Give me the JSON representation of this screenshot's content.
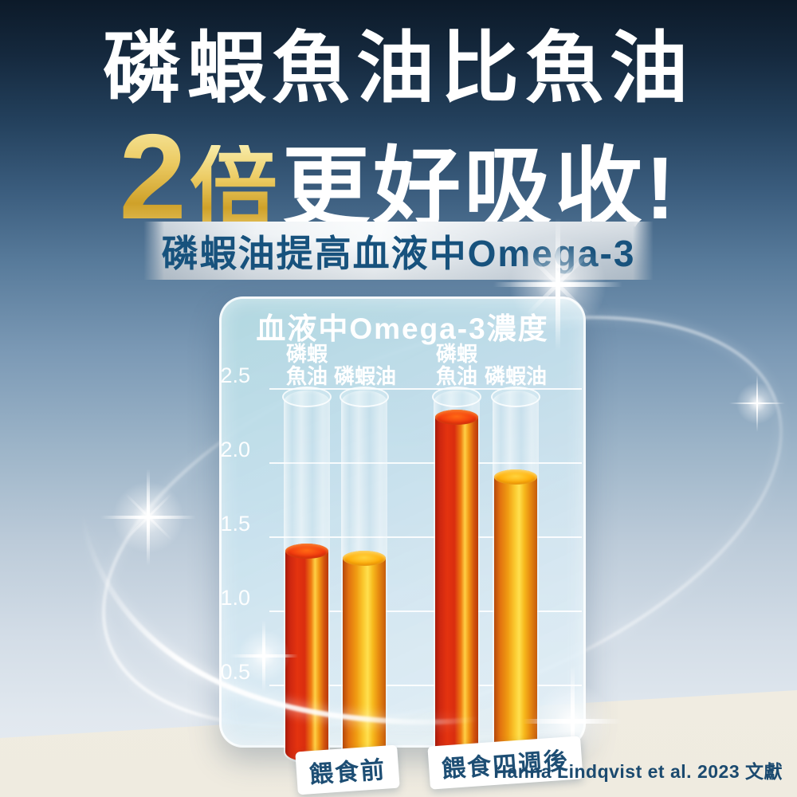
{
  "header": {
    "title_line1": "磷蝦魚油比魚油",
    "title_line2_highlight_num": "2",
    "title_line2_highlight_unit": "倍",
    "title_line2_rest": "更好吸收!",
    "subtitle": "磷蝦油提高血液中Omega-3"
  },
  "chart_data": {
    "type": "bar",
    "title": "血液中Omega-3濃度",
    "xlabel": "",
    "ylabel": "",
    "ylim": [
      0,
      2.5
    ],
    "grid": true,
    "yticks": [
      2.5,
      2.0,
      1.5,
      1.0,
      0.5
    ],
    "ytick_labels": [
      "2.5",
      "2.0",
      "1.5",
      "1.0",
      "0.5"
    ],
    "groups": [
      "餵食前",
      "餵食四週後"
    ],
    "column_labels": [
      "磷蝦魚油",
      "磷蝦油",
      "磷蝦魚油",
      "磷蝦油"
    ],
    "bars": [
      {
        "group": "餵食前",
        "label": "磷蝦魚油",
        "value": 1.4,
        "color": "red-orange"
      },
      {
        "group": "餵食前",
        "label": "磷蝦油",
        "value": 1.35,
        "color": "orange-yellow"
      },
      {
        "group": "餵食四週後",
        "label": "磷蝦魚油",
        "value": 2.3,
        "color": "red-orange"
      },
      {
        "group": "餵食四週後",
        "label": "磷蝦油",
        "value": 1.9,
        "color": "orange-yellow"
      }
    ],
    "legend_position": "none"
  },
  "footer": {
    "citation": "Hanna Lindqvist et al. 2023 文獻"
  },
  "colors": {
    "background_top_navy": "#0c1a29",
    "background_mid_blue": "#7b99b5",
    "ground_cream": "#f2efe6",
    "accent_gold": "#e3bb4e",
    "subtitle_blue": "#17527d",
    "bar_red": "#e03210",
    "bar_yellow": "#fbc92f",
    "tag_text_navy": "#1d4e74"
  }
}
